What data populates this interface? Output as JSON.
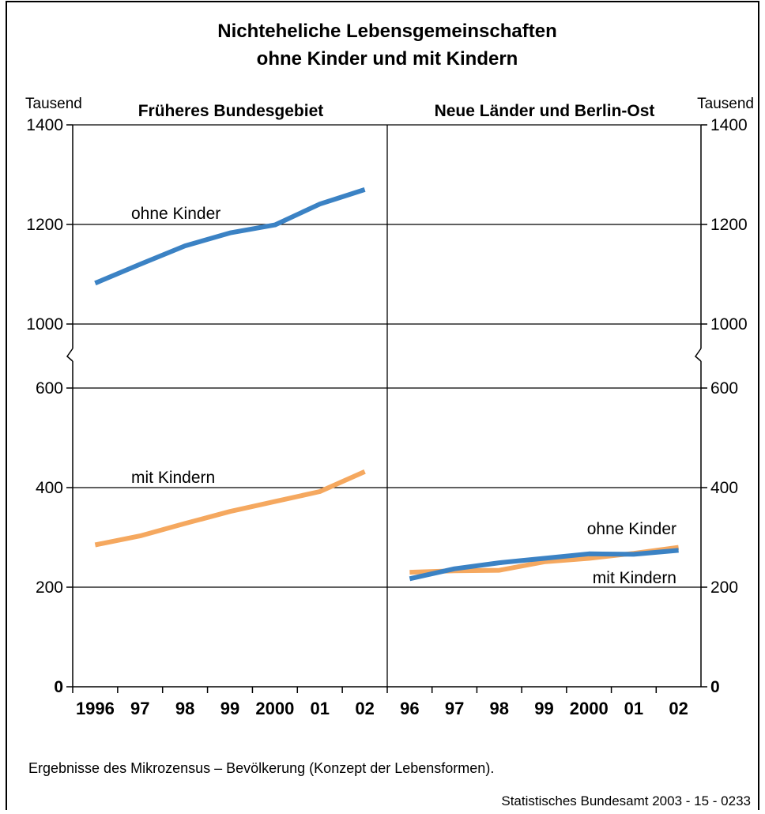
{
  "title_line1": "Nichteheliche Lebensgemeinschaften",
  "title_line2": "ohne Kinder und mit Kindern",
  "unit_left": "Tausend",
  "unit_right": "Tausend",
  "panel_left_title": "Früheres Bundesgebiet",
  "panel_right_title": "Neue Länder und Berlin-Ost",
  "footnote": "Ergebnisse des Mikrozensus – Bevölkerung (Konzept der Lebensformen).",
  "source": "Statistisches Bundesamt 2003 - 15 - 0233",
  "colors": {
    "ohne_kinder": "#3b82c4",
    "mit_kindern": "#f5a85f",
    "grid": "#000000"
  },
  "chart_data": [
    {
      "type": "line",
      "title": "Früheres Bundesgebiet",
      "ylabel": "Tausend",
      "axis_break": {
        "lower_range": [
          0,
          600
        ],
        "upper_range": [
          1000,
          1400
        ]
      },
      "y_ticks_lower": [
        "0",
        "200",
        "400",
        "600"
      ],
      "y_ticks_upper": [
        "1000",
        "1200",
        "1400"
      ],
      "x_tick_labels": [
        "1996",
        "97",
        "98",
        "99",
        "2000",
        "01",
        "02"
      ],
      "series": [
        {
          "name": "ohne Kinder",
          "color": "#3b82c4",
          "values": [
            1082,
            1120,
            1157,
            1183,
            1199,
            1241,
            1270
          ]
        },
        {
          "name": "mit Kindern",
          "color": "#f5a85f",
          "values": [
            285,
            303,
            328,
            352,
            372,
            392,
            432
          ]
        }
      ]
    },
    {
      "type": "line",
      "title": "Neue Länder und Berlin-Ost",
      "ylabel": "Tausend",
      "axis_break": {
        "lower_range": [
          0,
          600
        ],
        "upper_range": [
          1000,
          1400
        ]
      },
      "y_ticks_lower": [
        "0",
        "200",
        "400",
        "600"
      ],
      "y_ticks_upper": [
        "1000",
        "1200",
        "1400"
      ],
      "x_tick_labels": [
        "96",
        "97",
        "98",
        "99",
        "2000",
        "01",
        "02"
      ],
      "series": [
        {
          "name": "ohne Kinder",
          "color": "#3b82c4",
          "values": [
            217,
            237,
            249,
            258,
            267,
            266,
            274
          ]
        },
        {
          "name": "mit Kindern",
          "color": "#f5a85f",
          "values": [
            230,
            233,
            234,
            251,
            258,
            268,
            280
          ]
        }
      ]
    }
  ]
}
